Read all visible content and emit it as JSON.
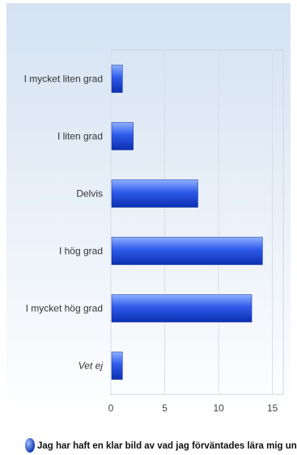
{
  "chart_data": {
    "type": "bar",
    "orientation": "horizontal",
    "categories": [
      {
        "label": "I mycket liten grad",
        "italic": false
      },
      {
        "label": "I liten grad",
        "italic": false
      },
      {
        "label": "Delvis",
        "italic": false
      },
      {
        "label": "I hög grad",
        "italic": false
      },
      {
        "label": "I mycket hög grad",
        "italic": false
      },
      {
        "label": "Vet ej",
        "italic": true
      }
    ],
    "series": [
      {
        "name": "Jag har haft en klar bild av vad jag förväntades lära mig under kursen",
        "values": [
          1,
          2,
          8,
          14,
          13,
          1
        ]
      }
    ],
    "xlim": [
      0,
      16
    ],
    "xticks": [
      "0",
      "5",
      "10",
      "15"
    ],
    "xtick_values": [
      0,
      5,
      10,
      15
    ],
    "grid": true,
    "legend_position": "bottom",
    "colors": {
      "bar_dark": "#0b2fb0",
      "bar_mid": "#2f5bea",
      "bar_light": "#8fb0ff",
      "background_top": "#d4e2f2",
      "background_bottom": "#ffffff",
      "grid": "#d8dde6"
    }
  }
}
